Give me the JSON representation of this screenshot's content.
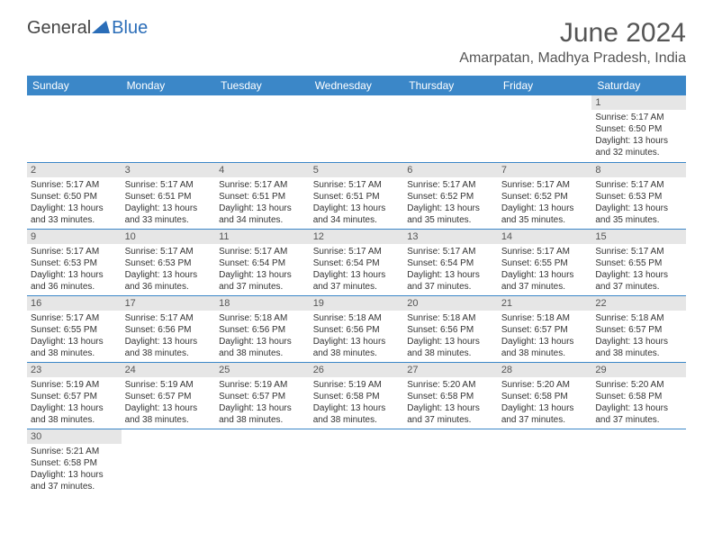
{
  "logo": {
    "text1": "General",
    "text2": "Blue"
  },
  "title": "June 2024",
  "location": "Amarpatan, Madhya Pradesh, India",
  "header_bg": "#3b87c8",
  "border_color": "#3b87c8",
  "daynum_bg": "#e6e6e6",
  "day_names": [
    "Sunday",
    "Monday",
    "Tuesday",
    "Wednesday",
    "Thursday",
    "Friday",
    "Saturday"
  ],
  "weeks": [
    [
      {
        "n": "",
        "sr": "",
        "ss": "",
        "dl": ""
      },
      {
        "n": "",
        "sr": "",
        "ss": "",
        "dl": ""
      },
      {
        "n": "",
        "sr": "",
        "ss": "",
        "dl": ""
      },
      {
        "n": "",
        "sr": "",
        "ss": "",
        "dl": ""
      },
      {
        "n": "",
        "sr": "",
        "ss": "",
        "dl": ""
      },
      {
        "n": "",
        "sr": "",
        "ss": "",
        "dl": ""
      },
      {
        "n": "1",
        "sr": "Sunrise: 5:17 AM",
        "ss": "Sunset: 6:50 PM",
        "dl": "Daylight: 13 hours and 32 minutes."
      }
    ],
    [
      {
        "n": "2",
        "sr": "Sunrise: 5:17 AM",
        "ss": "Sunset: 6:50 PM",
        "dl": "Daylight: 13 hours and 33 minutes."
      },
      {
        "n": "3",
        "sr": "Sunrise: 5:17 AM",
        "ss": "Sunset: 6:51 PM",
        "dl": "Daylight: 13 hours and 33 minutes."
      },
      {
        "n": "4",
        "sr": "Sunrise: 5:17 AM",
        "ss": "Sunset: 6:51 PM",
        "dl": "Daylight: 13 hours and 34 minutes."
      },
      {
        "n": "5",
        "sr": "Sunrise: 5:17 AM",
        "ss": "Sunset: 6:51 PM",
        "dl": "Daylight: 13 hours and 34 minutes."
      },
      {
        "n": "6",
        "sr": "Sunrise: 5:17 AM",
        "ss": "Sunset: 6:52 PM",
        "dl": "Daylight: 13 hours and 35 minutes."
      },
      {
        "n": "7",
        "sr": "Sunrise: 5:17 AM",
        "ss": "Sunset: 6:52 PM",
        "dl": "Daylight: 13 hours and 35 minutes."
      },
      {
        "n": "8",
        "sr": "Sunrise: 5:17 AM",
        "ss": "Sunset: 6:53 PM",
        "dl": "Daylight: 13 hours and 35 minutes."
      }
    ],
    [
      {
        "n": "9",
        "sr": "Sunrise: 5:17 AM",
        "ss": "Sunset: 6:53 PM",
        "dl": "Daylight: 13 hours and 36 minutes."
      },
      {
        "n": "10",
        "sr": "Sunrise: 5:17 AM",
        "ss": "Sunset: 6:53 PM",
        "dl": "Daylight: 13 hours and 36 minutes."
      },
      {
        "n": "11",
        "sr": "Sunrise: 5:17 AM",
        "ss": "Sunset: 6:54 PM",
        "dl": "Daylight: 13 hours and 37 minutes."
      },
      {
        "n": "12",
        "sr": "Sunrise: 5:17 AM",
        "ss": "Sunset: 6:54 PM",
        "dl": "Daylight: 13 hours and 37 minutes."
      },
      {
        "n": "13",
        "sr": "Sunrise: 5:17 AM",
        "ss": "Sunset: 6:54 PM",
        "dl": "Daylight: 13 hours and 37 minutes."
      },
      {
        "n": "14",
        "sr": "Sunrise: 5:17 AM",
        "ss": "Sunset: 6:55 PM",
        "dl": "Daylight: 13 hours and 37 minutes."
      },
      {
        "n": "15",
        "sr": "Sunrise: 5:17 AM",
        "ss": "Sunset: 6:55 PM",
        "dl": "Daylight: 13 hours and 37 minutes."
      }
    ],
    [
      {
        "n": "16",
        "sr": "Sunrise: 5:17 AM",
        "ss": "Sunset: 6:55 PM",
        "dl": "Daylight: 13 hours and 38 minutes."
      },
      {
        "n": "17",
        "sr": "Sunrise: 5:17 AM",
        "ss": "Sunset: 6:56 PM",
        "dl": "Daylight: 13 hours and 38 minutes."
      },
      {
        "n": "18",
        "sr": "Sunrise: 5:18 AM",
        "ss": "Sunset: 6:56 PM",
        "dl": "Daylight: 13 hours and 38 minutes."
      },
      {
        "n": "19",
        "sr": "Sunrise: 5:18 AM",
        "ss": "Sunset: 6:56 PM",
        "dl": "Daylight: 13 hours and 38 minutes."
      },
      {
        "n": "20",
        "sr": "Sunrise: 5:18 AM",
        "ss": "Sunset: 6:56 PM",
        "dl": "Daylight: 13 hours and 38 minutes."
      },
      {
        "n": "21",
        "sr": "Sunrise: 5:18 AM",
        "ss": "Sunset: 6:57 PM",
        "dl": "Daylight: 13 hours and 38 minutes."
      },
      {
        "n": "22",
        "sr": "Sunrise: 5:18 AM",
        "ss": "Sunset: 6:57 PM",
        "dl": "Daylight: 13 hours and 38 minutes."
      }
    ],
    [
      {
        "n": "23",
        "sr": "Sunrise: 5:19 AM",
        "ss": "Sunset: 6:57 PM",
        "dl": "Daylight: 13 hours and 38 minutes."
      },
      {
        "n": "24",
        "sr": "Sunrise: 5:19 AM",
        "ss": "Sunset: 6:57 PM",
        "dl": "Daylight: 13 hours and 38 minutes."
      },
      {
        "n": "25",
        "sr": "Sunrise: 5:19 AM",
        "ss": "Sunset: 6:57 PM",
        "dl": "Daylight: 13 hours and 38 minutes."
      },
      {
        "n": "26",
        "sr": "Sunrise: 5:19 AM",
        "ss": "Sunset: 6:58 PM",
        "dl": "Daylight: 13 hours and 38 minutes."
      },
      {
        "n": "27",
        "sr": "Sunrise: 5:20 AM",
        "ss": "Sunset: 6:58 PM",
        "dl": "Daylight: 13 hours and 37 minutes."
      },
      {
        "n": "28",
        "sr": "Sunrise: 5:20 AM",
        "ss": "Sunset: 6:58 PM",
        "dl": "Daylight: 13 hours and 37 minutes."
      },
      {
        "n": "29",
        "sr": "Sunrise: 5:20 AM",
        "ss": "Sunset: 6:58 PM",
        "dl": "Daylight: 13 hours and 37 minutes."
      }
    ],
    [
      {
        "n": "30",
        "sr": "Sunrise: 5:21 AM",
        "ss": "Sunset: 6:58 PM",
        "dl": "Daylight: 13 hours and 37 minutes."
      },
      {
        "n": "",
        "sr": "",
        "ss": "",
        "dl": ""
      },
      {
        "n": "",
        "sr": "",
        "ss": "",
        "dl": ""
      },
      {
        "n": "",
        "sr": "",
        "ss": "",
        "dl": ""
      },
      {
        "n": "",
        "sr": "",
        "ss": "",
        "dl": ""
      },
      {
        "n": "",
        "sr": "",
        "ss": "",
        "dl": ""
      },
      {
        "n": "",
        "sr": "",
        "ss": "",
        "dl": ""
      }
    ]
  ]
}
